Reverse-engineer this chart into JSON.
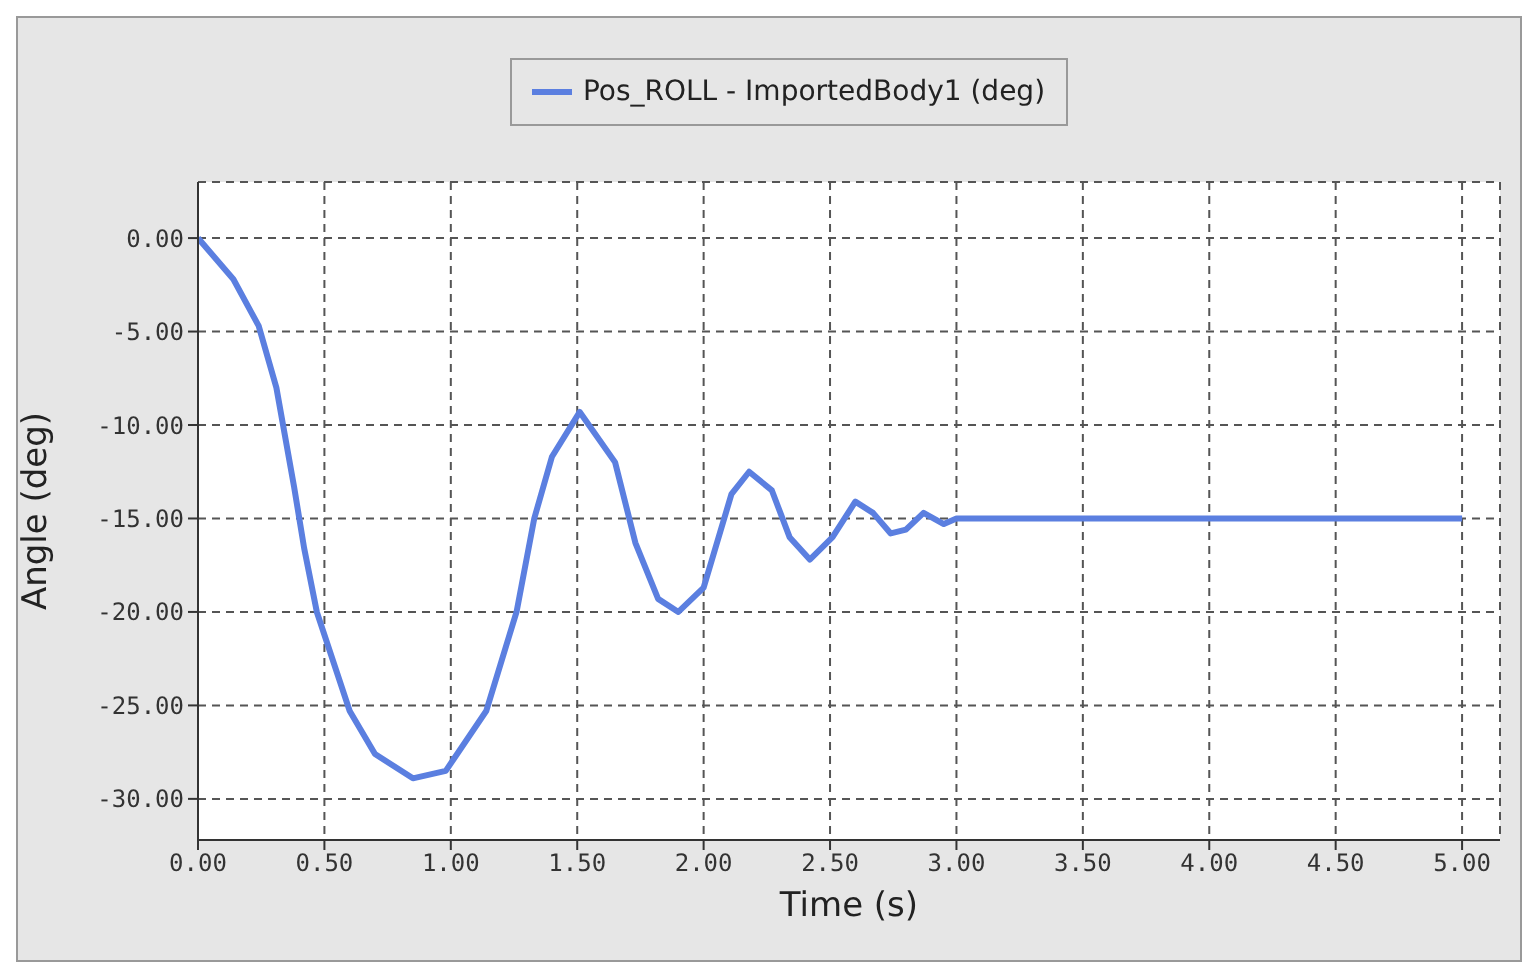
{
  "chart_data": {
    "type": "line",
    "xlabel": "Time (s)",
    "ylabel": "Angle (deg)",
    "x": [
      0,
      0.14,
      0.24,
      0.31,
      0.38,
      0.42,
      0.47,
      0.6,
      0.7,
      0.85,
      0.98,
      1.14,
      1.26,
      1.33,
      1.4,
      1.51,
      1.65,
      1.73,
      1.82,
      1.9,
      2.0,
      2.11,
      2.18,
      2.27,
      2.34,
      2.42,
      2.51,
      2.6,
      2.67,
      2.74,
      2.8,
      2.87,
      2.95,
      3.0,
      5.0
    ],
    "series": [
      {
        "name": "Pos_ROLL - ImportedBody1 (deg)",
        "color": "#5b7fe0",
        "values": [
          0,
          -2.2,
          -4.7,
          -8,
          -13.3,
          -16.6,
          -20,
          -25.3,
          -27.6,
          -28.9,
          -28.5,
          -25.3,
          -20,
          -15,
          -11.7,
          -9.3,
          -12,
          -16.3,
          -19.3,
          -20,
          -18.7,
          -13.7,
          -12.5,
          -13.5,
          -16,
          -17.2,
          -16,
          -14.1,
          -14.7,
          -15.8,
          -15.6,
          -14.7,
          -15.3,
          -15,
          -15
        ]
      }
    ],
    "xlim": [
      0,
      5.15
    ],
    "xticks": [
      {
        "value": 0,
        "label": "0.00"
      },
      {
        "value": 0.5,
        "label": "0.50"
      },
      {
        "value": 1,
        "label": "1.00"
      },
      {
        "value": 1.5,
        "label": "1.50"
      },
      {
        "value": 2,
        "label": "2.00"
      },
      {
        "value": 2.5,
        "label": "2.50"
      },
      {
        "value": 3,
        "label": "3.00"
      },
      {
        "value": 3.5,
        "label": "3.50"
      },
      {
        "value": 4,
        "label": "4.00"
      },
      {
        "value": 4.5,
        "label": "4.50"
      },
      {
        "value": 5,
        "label": "5.00"
      }
    ],
    "ylim": [
      -32.2,
      3
    ],
    "yticks": [
      {
        "value": -30,
        "label": "-30.00"
      },
      {
        "value": -25,
        "label": "-25.00"
      },
      {
        "value": -20,
        "label": "-20.00"
      },
      {
        "value": -15,
        "label": "-15.00"
      },
      {
        "value": -10,
        "label": "-10.00"
      },
      {
        "value": -5,
        "label": "-5.00"
      },
      {
        "value": 0,
        "label": "0.00"
      }
    ],
    "grid": true,
    "legend": "top",
    "marker": "none",
    "line_style": "solid"
  }
}
